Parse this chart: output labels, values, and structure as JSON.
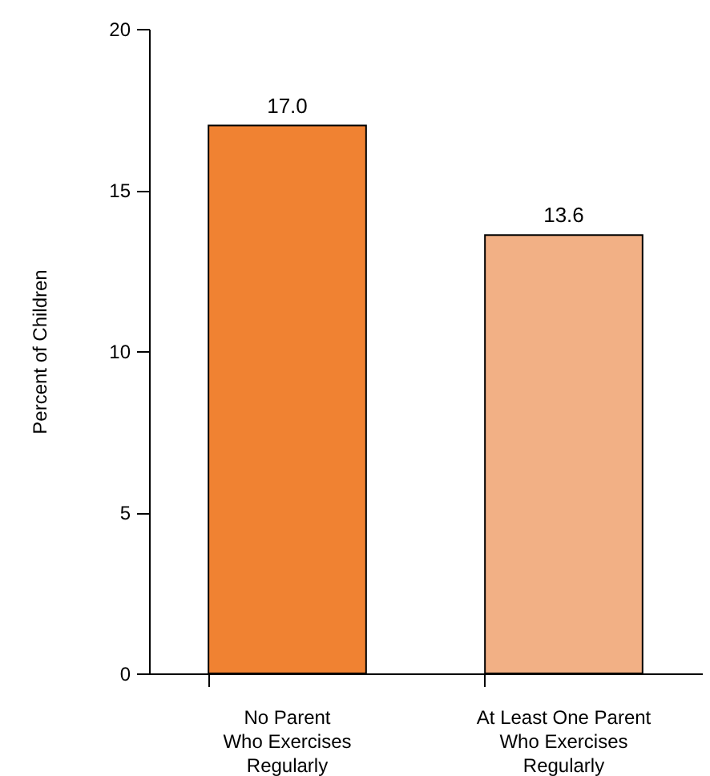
{
  "chart_data": {
    "type": "bar",
    "ylabel": "Percent of Children",
    "categories": [
      "No Parent Who Exercises Regularly",
      "At Least One Parent Who Exercises Regularly"
    ],
    "values": [
      17.0,
      13.6
    ],
    "colors": [
      "#f08232",
      "#f2b085"
    ],
    "value_labels": [
      "17.0",
      "13.6"
    ],
    "ylim": [
      0,
      20
    ],
    "yticks": [
      0,
      5,
      10,
      15,
      20
    ],
    "grid": false
  }
}
